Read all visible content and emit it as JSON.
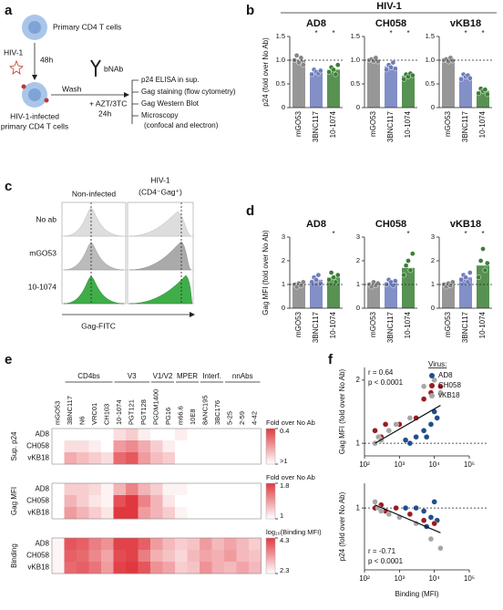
{
  "panel_a": {
    "label": "a",
    "texts": {
      "cells": "Primary CD4 T cells",
      "virus": "HIV-1",
      "time1": "48h",
      "infected": [
        "HIV-1-infected",
        "primary CD4 T cells"
      ],
      "bnab": "bNAb",
      "wash": "Wash",
      "drugs": "+ AZT/3TC",
      "time2": "24h",
      "readouts": [
        "p24 ELISA in sup.",
        "Gag staining (flow cytometry)",
        "Gag Western Blot",
        "Microscopy",
        "(confocal and electron)"
      ]
    }
  },
  "panel_b": {
    "label": "b",
    "header": "HIV-1",
    "type": "bar",
    "ylabel": "p24 (fold over No Ab)",
    "ylim": [
      0,
      1.5
    ],
    "yticks": [
      0,
      0.5,
      {
        "value": 1,
        "label": "1.0"
      },
      1.5
    ],
    "reference_line": 1,
    "categories": [
      "mGO53",
      "3BNC117",
      "10-1074"
    ],
    "colors": [
      "#858585",
      "#6d7bbd",
      "#3b7f35"
    ],
    "subplots": [
      {
        "title": "AD8",
        "values": [
          1,
          0.75,
          0.8
        ],
        "stars": [
          null,
          "*",
          "*"
        ],
        "points": [
          [
            1.0,
            1.1,
            0.95,
            1.05,
            0.9
          ],
          [
            0.7,
            0.8,
            0.75,
            0.72,
            0.78
          ],
          [
            0.75,
            0.85,
            0.8,
            0.7,
            0.9
          ]
        ]
      },
      {
        "title": "CH058",
        "values": [
          1,
          0.87,
          0.67
        ],
        "stars": [
          null,
          "*",
          "*"
        ],
        "points": [
          [
            1.0,
            1.02,
            0.98,
            1.05,
            0.97
          ],
          [
            0.8,
            0.9,
            0.85,
            0.95,
            0.82
          ],
          [
            0.6,
            0.7,
            0.65,
            0.72,
            0.68
          ]
        ]
      },
      {
        "title": "vKB18",
        "values": [
          1,
          0.65,
          0.35
        ],
        "stars": [
          null,
          "*",
          "*"
        ],
        "points": [
          [
            1.0,
            1.02,
            0.97,
            1.05,
            0.99
          ],
          [
            0.6,
            0.7,
            0.65,
            0.68,
            0.62
          ],
          [
            0.3,
            0.4,
            0.35,
            0.38,
            0.28
          ]
        ]
      }
    ]
  },
  "panel_c": {
    "label": "c",
    "columns": [
      "Non-infected",
      "HIV-1"
    ],
    "column_note": "(CD4⁻Gag⁺)",
    "rows": [
      "No ab",
      "mGO53",
      "10-1074"
    ],
    "xlabel": "Gag-FITC"
  },
  "panel_d": {
    "label": "d",
    "type": "bar",
    "ylabel": "Gag MFI (fold over No Ab)",
    "ylim": [
      0,
      3
    ],
    "yticks": [
      0,
      1,
      2,
      3
    ],
    "reference_line": 1,
    "categories": [
      "mGO53",
      "3BNC117",
      "10-1074"
    ],
    "colors": [
      "#858585",
      "#6d7bbd",
      "#3b7f35"
    ],
    "subplots": [
      {
        "title": "AD8",
        "values": [
          1,
          1.2,
          1.3
        ],
        "stars": [
          null,
          null,
          "*"
        ],
        "points": [
          [
            1.0,
            0.9,
            1.05,
            0.95,
            1.1
          ],
          [
            1.1,
            1.3,
            1.2,
            1.4,
            1.05
          ],
          [
            1.2,
            1.5,
            1.3,
            1.1,
            1.4
          ]
        ]
      },
      {
        "title": "CH058",
        "values": [
          1,
          1.1,
          1.7
        ],
        "stars": [
          null,
          null,
          "*"
        ],
        "points": [
          [
            1.0,
            0.9,
            1.1,
            0.95,
            1.05
          ],
          [
            1.0,
            1.2,
            1.1,
            0.95,
            1.15
          ],
          [
            1.4,
            1.8,
            2.0,
            1.6,
            2.3
          ]
        ]
      },
      {
        "title": "vKB18",
        "values": [
          1,
          1.3,
          1.8
        ],
        "stars": [
          null,
          "*",
          "*"
        ],
        "points": [
          [
            1.0,
            0.9,
            1.05,
            0.95,
            1.1
          ],
          [
            1.2,
            1.4,
            1.3,
            1.1,
            1.5
          ],
          [
            1.3,
            2.0,
            2.5,
            1.6,
            1.9
          ]
        ]
      }
    ]
  },
  "panel_e": {
    "label": "e",
    "type": "heatmap",
    "groups": [
      "CD4bs",
      "V3",
      "V1/V2",
      "MPER",
      "Interf.",
      "nnAbs"
    ],
    "columns": [
      "mGO53",
      "3BNC117",
      "N6",
      "VRC01",
      "CH103",
      "10-1074",
      "PGT121",
      "PGT128",
      "PGDM1400",
      "PG16",
      "m66.6",
      "10E8",
      "8ANC195",
      "3BC176",
      "5-25",
      "2-59",
      "4-42"
    ],
    "sections": [
      {
        "name": "Sup. p24",
        "rows": [
          "AD8",
          "CH058",
          "vKB18"
        ],
        "scale": {
          "title": "Fold over No Ab",
          "ticks": [
            0.4,
            {
              "value": 1,
              "label": ">1"
            }
          ],
          "colors": [
            "#e0383f",
            "#ffffff"
          ]
        },
        "values": [
          [
            1,
            1,
            1,
            1,
            1,
            0.9,
            0.85,
            0.95,
            1,
            1,
            0.95,
            1,
            1,
            1,
            1,
            1,
            1
          ],
          [
            1,
            0.9,
            0.9,
            0.95,
            1,
            0.7,
            0.65,
            0.75,
            0.85,
            0.95,
            1,
            1,
            1,
            1,
            1,
            1,
            1
          ],
          [
            1,
            0.75,
            0.8,
            0.85,
            0.9,
            0.55,
            0.5,
            0.7,
            0.8,
            0.85,
            1,
            1,
            1,
            1,
            1,
            1,
            1
          ]
        ]
      },
      {
        "name": "Gag MFI",
        "rows": [
          "AD8",
          "CH058",
          "vKB18"
        ],
        "scale": {
          "title": "Fold over No Ab",
          "ticks": [
            1.8,
            1
          ],
          "colors": [
            "#e0383f",
            "#ffffff"
          ]
        },
        "values": [
          [
            1,
            1.2,
            1.2,
            1.15,
            1.05,
            1.3,
            1.5,
            1.3,
            1.2,
            1.05,
            1.05,
            1,
            1,
            1,
            1,
            1,
            1
          ],
          [
            1,
            1.3,
            1.2,
            1.1,
            1.05,
            1.7,
            1.8,
            1.5,
            1.3,
            1.1,
            1,
            1,
            1,
            1,
            1,
            1,
            1
          ],
          [
            1,
            1.4,
            1.3,
            1.2,
            1.1,
            1.8,
            1.8,
            1.4,
            1.3,
            1.2,
            1.05,
            1,
            1,
            1,
            1,
            1,
            1
          ]
        ]
      },
      {
        "name": "Binding",
        "rows": [
          "AD8",
          "CH058",
          "vKB18"
        ],
        "scale": {
          "title": "log₁₀(Binding MFI)",
          "ticks": [
            4.3,
            2.3
          ],
          "colors": [
            "#e0383f",
            "#ffffff"
          ]
        },
        "values": [
          [
            2.4,
            4.0,
            3.9,
            3.6,
            3.4,
            4.2,
            4.2,
            3.9,
            3.3,
            3.0,
            2.8,
            2.9,
            3.3,
            3.0,
            3.2,
            3.0,
            2.8
          ],
          [
            2.4,
            3.9,
            3.8,
            3.5,
            3.2,
            4.1,
            4.2,
            3.6,
            3.1,
            2.9,
            2.7,
            3.0,
            3.2,
            3.1,
            3.3,
            3.0,
            2.9
          ],
          [
            2.4,
            3.8,
            3.9,
            3.7,
            3.3,
            4.2,
            4.3,
            4.0,
            3.4,
            3.2,
            2.8,
            2.9,
            3.4,
            3.1,
            3.0,
            3.2,
            3.0
          ]
        ]
      }
    ]
  },
  "panel_f": {
    "label": "f",
    "type": "scatter",
    "log_x": true,
    "legend": {
      "title": "Virus:",
      "entries": [
        "AD8",
        "CH058",
        "vKB18"
      ],
      "colors": [
        "#1f4e8c",
        "#9b1b22",
        "#a6a6a6"
      ]
    },
    "xlabel": "Binding (MFI)",
    "xlim": [
      100,
      100000
    ],
    "xticks": [
      {
        "value": 100,
        "label": "10²"
      },
      {
        "value": 1000,
        "label": "10³"
      },
      {
        "value": 10000,
        "label": "10⁴"
      },
      {
        "value": 100000,
        "label": "10⁵"
      }
    ],
    "plots": [
      {
        "ylabel": "Gag MFI (fold over No Ab)",
        "ylim": [
          0.8,
          2.2
        ],
        "yticks": [
          1,
          2
        ],
        "reference_line": 1,
        "stats": [
          "r = 0.64",
          "p < 0.0001"
        ],
        "trend": {
          "x": [
            200,
            15000
          ],
          "y": [
            1.0,
            1.6
          ]
        },
        "series": [
          {
            "x": [
              2000,
              3000,
              5000,
              8000,
              10000,
              12000,
              1500,
              6000
            ],
            "y": [
              1.0,
              1.1,
              1.2,
              1.3,
              1.5,
              1.4,
              1.05,
              1.1
            ]
          },
          {
            "x": [
              200,
              300,
              400,
              1000,
              3000,
              5000,
              8000,
              15000
            ],
            "y": [
              1.2,
              1.1,
              1.3,
              1.3,
              1.4,
              1.7,
              1.8,
              1.9
            ]
          },
          {
            "x": [
              200,
              250,
              300,
              500,
              800,
              2000,
              5000,
              10000,
              15000
            ],
            "y": [
              1.0,
              1.1,
              1.05,
              1.2,
              1.3,
              1.4,
              1.9,
              2.0,
              1.8
            ]
          }
        ]
      },
      {
        "ylabel": "p24 (fold over No Ab)",
        "ylim": [
          0,
          1.4
        ],
        "yticks": [
          1
        ],
        "reference_line": 1,
        "stats": [
          "r = -0.71",
          "p < 0.0001"
        ],
        "trend": {
          "x": [
            200,
            15000
          ],
          "y": [
            1.05,
            0.6
          ]
        },
        "series": [
          {
            "x": [
              2000,
              3000,
              5000,
              8000,
              10000,
              1500,
              6000,
              12000
            ],
            "y": [
              0.9,
              1.0,
              0.95,
              0.85,
              1.1,
              1.0,
              0.7,
              0.8
            ]
          },
          {
            "x": [
              200,
              300,
              400,
              800,
              2000,
              5000,
              10000
            ],
            "y": [
              1.0,
              1.05,
              0.95,
              1.0,
              0.9,
              0.8,
              0.75
            ]
          },
          {
            "x": [
              200,
              250,
              300,
              500,
              1000,
              3000,
              8000,
              15000
            ],
            "y": [
              1.1,
              1.0,
              0.95,
              0.9,
              0.85,
              0.75,
              0.5,
              0.35
            ]
          }
        ]
      }
    ]
  }
}
